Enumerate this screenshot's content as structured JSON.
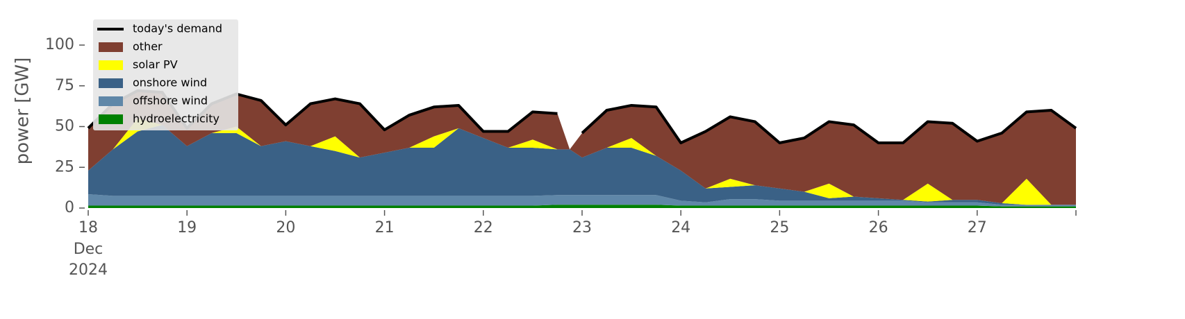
{
  "chart_data": {
    "type": "area",
    "y_label": "power [GW]",
    "ylim": [
      0,
      120
    ],
    "yticks": [
      0,
      25,
      50,
      75,
      100
    ],
    "xlim": [
      18,
      28
    ],
    "xticks": [
      18,
      19,
      20,
      21,
      22,
      23,
      24,
      25,
      26,
      27
    ],
    "date_label": [
      "Dec",
      "2024"
    ],
    "legend": "upper left",
    "x": [
      18,
      18.25,
      18.5,
      18.75,
      19,
      19.25,
      19.5,
      19.75,
      20,
      20.25,
      20.5,
      20.75,
      21,
      21.25,
      21.5,
      21.75,
      22,
      22.25,
      22.5,
      22.75,
      22.875,
      23,
      23.25,
      23.5,
      23.75,
      24,
      24.25,
      24.5,
      24.75,
      25,
      25.25,
      25.5,
      25.75,
      26,
      26.25,
      26.5,
      26.75,
      27,
      27.25,
      27.5,
      27.75,
      28
    ],
    "series": [
      {
        "name": "today's demand",
        "type": "line",
        "color": "#000000",
        "values": [
          49,
          64,
          72,
          71,
          49,
          64,
          70,
          66,
          51,
          64,
          67,
          64,
          48,
          57,
          62,
          63,
          47,
          47,
          59,
          58,
          null,
          46,
          60,
          63,
          62,
          40,
          47,
          56,
          53,
          40,
          43,
          53,
          51,
          40,
          40,
          53,
          52,
          41,
          46,
          59,
          60,
          49
        ]
      },
      {
        "name": "other",
        "color": "#7f3f31",
        "values": [
          26,
          28,
          17,
          20,
          11,
          18,
          20,
          28,
          10,
          26,
          23,
          33,
          14,
          20,
          18,
          14,
          4,
          10,
          17,
          22,
          0,
          15,
          23,
          20,
          30,
          17,
          35,
          38,
          39,
          28,
          33,
          38,
          44,
          34,
          35,
          38,
          47,
          36,
          43,
          41,
          58,
          47
        ]
      },
      {
        "name": "solar PV",
        "color": "#ffff00",
        "values": [
          0,
          0,
          8,
          0,
          0,
          0,
          4,
          0,
          0,
          0,
          9,
          0,
          0,
          0,
          7,
          0,
          0,
          0,
          5,
          0,
          0,
          0,
          0,
          6,
          0,
          0,
          0,
          5,
          0,
          0,
          0,
          9,
          0,
          0,
          0,
          11,
          0,
          0,
          0,
          16,
          0,
          0
        ]
      },
      {
        "name": "onshore wind",
        "color": "#3a6186",
        "values": [
          14.5,
          28.5,
          39.5,
          43.5,
          30.5,
          38.5,
          38.5,
          30.5,
          33.5,
          30.5,
          27.5,
          23.5,
          26.5,
          29.5,
          29.5,
          41.5,
          35.5,
          29.5,
          29.5,
          28,
          28,
          23,
          29,
          29,
          24,
          18.5,
          8.5,
          7.5,
          8.5,
          7.5,
          5.5,
          1.5,
          2.5,
          1.5,
          0.5,
          0.5,
          1.5,
          1.5,
          1,
          0,
          0,
          0
        ]
      },
      {
        "name": "offshore wind",
        "color": "#5f87a8",
        "values": [
          7,
          6,
          6,
          6,
          6,
          6,
          6,
          6,
          6,
          6,
          6,
          6,
          6,
          6,
          6,
          6,
          6,
          6,
          6,
          6,
          6,
          6,
          6,
          6,
          6,
          3,
          2,
          4,
          4,
          3,
          3,
          3,
          3,
          3,
          3,
          2,
          2,
          2,
          1,
          1,
          1,
          1
        ]
      },
      {
        "name": "hydroelectricity",
        "color": "#008000",
        "values": [
          1.5,
          1.5,
          1.5,
          1.5,
          1.5,
          1.5,
          1.5,
          1.5,
          1.5,
          1.5,
          1.5,
          1.5,
          1.5,
          1.5,
          1.5,
          1.5,
          1.5,
          1.5,
          1.5,
          2,
          2,
          2,
          2,
          2,
          2,
          1.5,
          1.5,
          1.5,
          1.5,
          1.5,
          1.5,
          1.5,
          1.5,
          1.5,
          1.5,
          1.5,
          1.5,
          1.5,
          1,
          1,
          1,
          1
        ]
      }
    ]
  }
}
